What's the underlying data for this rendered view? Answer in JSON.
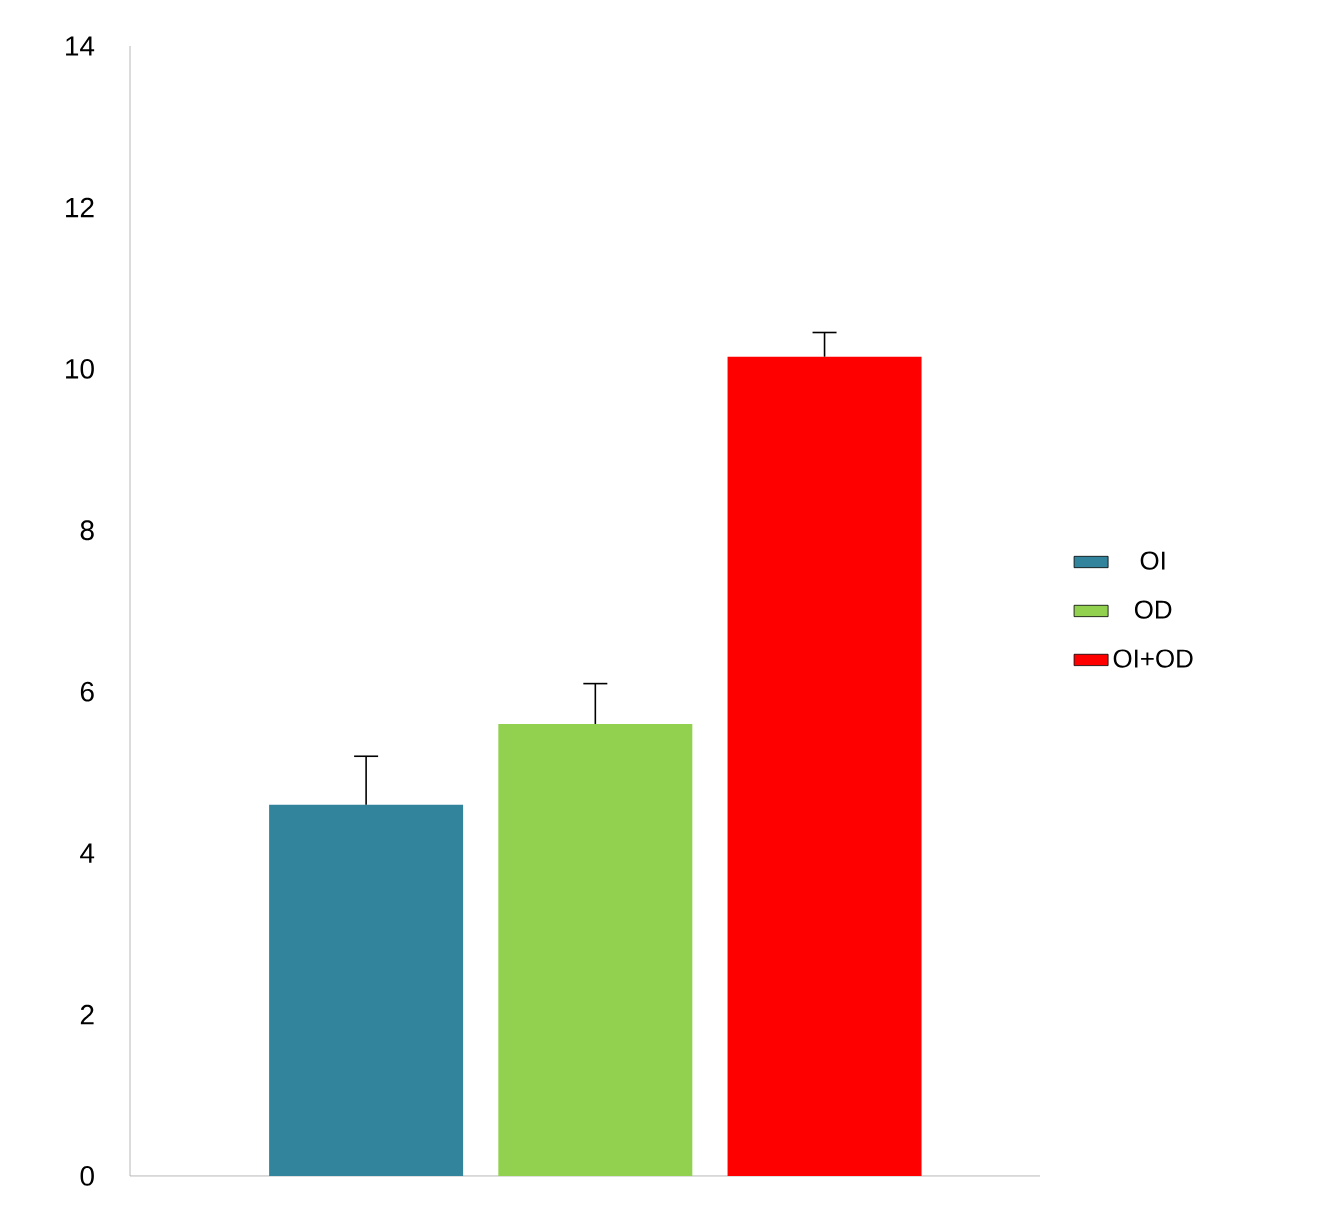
{
  "chart_data": {
    "type": "bar",
    "categories": [
      null,
      null,
      null
    ],
    "series": [
      {
        "name": "OI",
        "color": "#31849b",
        "values": [
          4.6,
          null,
          null
        ],
        "errors": [
          [
            4.6,
            5.2
          ],
          null,
          null
        ]
      },
      {
        "name": "OD",
        "color": "#92d050",
        "values": [
          null,
          5.6,
          null
        ],
        "errors": [
          null,
          [
            5.6,
            6.1
          ],
          null
        ]
      },
      {
        "name": "OI+OD",
        "color": "#ff0000",
        "values": [
          null,
          null,
          10.15
        ],
        "errors": [
          null,
          null,
          [
            10.15,
            10.45
          ]
        ]
      }
    ],
    "ylim": [
      0,
      14
    ],
    "yticks": [
      0,
      2,
      4,
      6,
      8,
      10,
      12,
      14
    ],
    "legend": "right",
    "grid": false
  }
}
